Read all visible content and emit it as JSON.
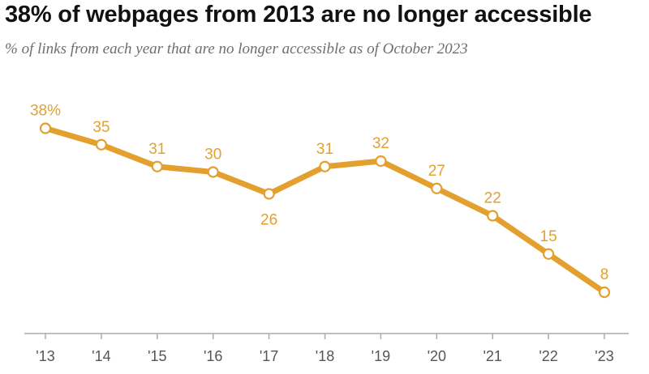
{
  "chart_data": {
    "type": "line",
    "title": "38% of webpages from 2013 are no longer accessible",
    "subtitle": "% of links from each year that are no longer accessible as of October 2023",
    "xlabel": "",
    "ylabel": "",
    "categories": [
      "'13",
      "'14",
      "'15",
      "'16",
      "'17",
      "'18",
      "'19",
      "'20",
      "'21",
      "'22",
      "'23"
    ],
    "series": [
      {
        "values": [
          38,
          35,
          31,
          30,
          26,
          31,
          32,
          27,
          22,
          15,
          8
        ],
        "labels": [
          "38%",
          "35",
          "31",
          "30",
          "26",
          "31",
          "32",
          "27",
          "22",
          "15",
          "8"
        ],
        "color": "#E4A02F"
      }
    ],
    "ylim": [
      0,
      38
    ],
    "grid": false,
    "legend": "none",
    "axis_color": "#aaaaaa",
    "tick_label_color": "#555555"
  }
}
